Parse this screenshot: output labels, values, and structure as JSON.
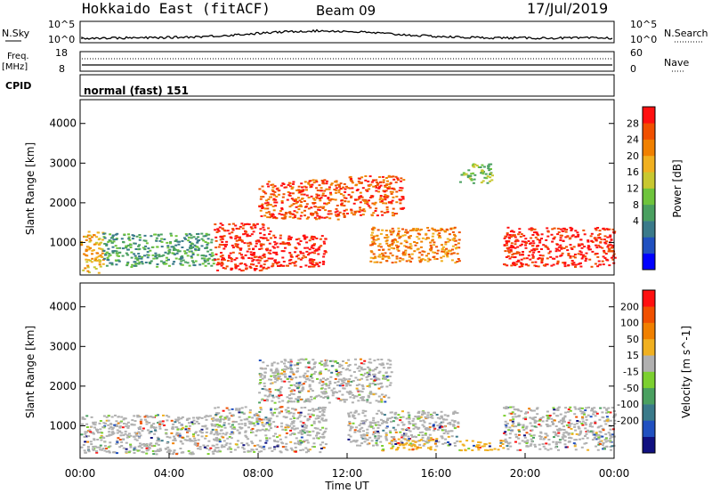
{
  "header": {
    "title": "Hokkaido East (fitACF)",
    "beam": "Beam 09",
    "date": "17/Jul/2019"
  },
  "strip_panels": {
    "nsky": {
      "left_label": "N.Sky",
      "right_label": "N.Search",
      "ticks_left": [
        "10^5",
        "10^0"
      ],
      "ticks_right": [
        "10^5",
        "10^0"
      ]
    },
    "freq": {
      "left_label_1": "Freq.",
      "left_label_2": "[MHz]",
      "right_label": "Nave",
      "ticks_left": [
        "18",
        "8"
      ],
      "ticks_right": [
        "60",
        "0"
      ]
    },
    "cpid": {
      "label": "CPID",
      "mode_text": "normal (fast) 151"
    }
  },
  "chart_data": [
    {
      "type": "heatmap",
      "panel": "power",
      "ylabel": "Slant Range [km]",
      "yticks": [
        1000,
        2000,
        3000,
        4000
      ],
      "ylim": [
        180,
        4600
      ],
      "xlim": [
        0,
        24
      ],
      "colorbar": {
        "label": "Power [dB]",
        "ticks": [
          "28",
          "24",
          "20",
          "16",
          "12",
          "8",
          "4"
        ],
        "colors": [
          "#0000ff",
          "#2050c0",
          "#3a7a8a",
          "#4aa060",
          "#6ec43c",
          "#c8c830",
          "#f0b020",
          "#f08000",
          "#f05000",
          "#ff1010"
        ]
      },
      "regions": [
        {
          "x": [
            0,
            1
          ],
          "y": [
            250,
            1300
          ],
          "level": 6
        },
        {
          "x": [
            1,
            6
          ],
          "y": [
            400,
            1250
          ],
          "level": 3
        },
        {
          "x": [
            6,
            8.5
          ],
          "y": [
            300,
            1500
          ],
          "level": 9
        },
        {
          "x": [
            8.5,
            11
          ],
          "y": [
            400,
            1200
          ],
          "level": 9
        },
        {
          "x": [
            8,
            12
          ],
          "y": [
            1600,
            2600
          ],
          "level": 8
        },
        {
          "x": [
            12,
            14.5
          ],
          "y": [
            1700,
            2700
          ],
          "level": 8
        },
        {
          "x": [
            13,
            17
          ],
          "y": [
            500,
            1400
          ],
          "level": 7
        },
        {
          "x": [
            19,
            24
          ],
          "y": [
            400,
            1400
          ],
          "level": 9
        },
        {
          "x": [
            17,
            18.5
          ],
          "y": [
            2500,
            3000
          ],
          "level": 4
        }
      ]
    },
    {
      "type": "heatmap",
      "panel": "velocity",
      "ylabel": "Slant Range [km]",
      "xlabel": "Time UT",
      "yticks": [
        1000,
        2000,
        3000,
        4000
      ],
      "ylim": [
        180,
        4600
      ],
      "xlim": [
        0,
        24
      ],
      "xticks": [
        "00:00",
        "04:00",
        "08:00",
        "12:00",
        "16:00",
        "20:00",
        "00:00"
      ],
      "colorbar": {
        "label": "Velocity [m s^-1]",
        "ticks": [
          "200",
          "100",
          "50",
          "15",
          "-15",
          "-50",
          "-100",
          "-200"
        ],
        "colors": [
          "#101080",
          "#2050c0",
          "#3a7a8a",
          "#4aa060",
          "#7cd030",
          "#b0b0b0",
          "#f0b020",
          "#f08000",
          "#f05000",
          "#ff1010"
        ]
      },
      "regions": [
        {
          "x": [
            0,
            6
          ],
          "y": [
            300,
            1300
          ],
          "level": 5
        },
        {
          "x": [
            6,
            11
          ],
          "y": [
            350,
            1500
          ],
          "level": 5
        },
        {
          "x": [
            8,
            14
          ],
          "y": [
            1600,
            2700
          ],
          "level": 5
        },
        {
          "x": [
            12,
            17
          ],
          "y": [
            500,
            1400
          ],
          "level": 5
        },
        {
          "x": [
            13.5,
            16
          ],
          "y": [
            400,
            700
          ],
          "level": 6
        },
        {
          "x": [
            17,
            19
          ],
          "y": [
            400,
            650
          ],
          "level": 6
        },
        {
          "x": [
            19,
            24
          ],
          "y": [
            400,
            1500
          ],
          "level": 5
        }
      ]
    }
  ]
}
